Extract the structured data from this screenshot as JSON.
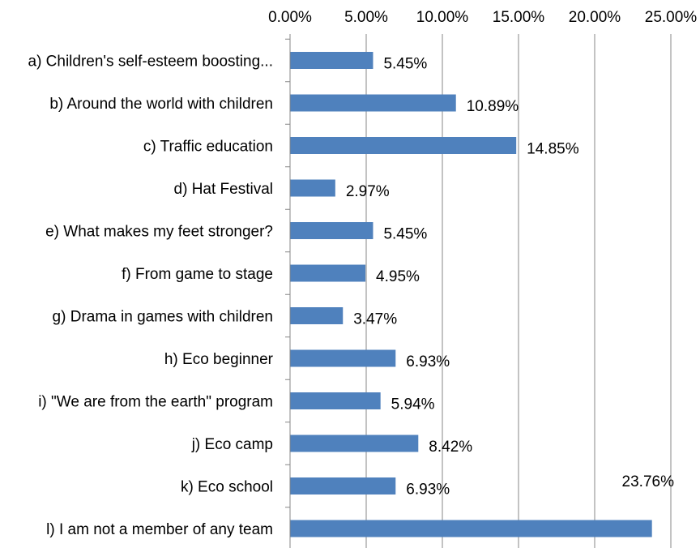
{
  "chart_data": {
    "type": "bar",
    "orientation": "horizontal",
    "categories": [
      "a) Children's self-esteem boosting...",
      "b) Around the world with children",
      "c) Traffic education",
      "d) Hat Festival",
      "e) What makes my feet stronger?",
      "f) From game to stage",
      "g) Drama in games with children",
      "h) Eco beginner",
      "i) \"We are from the earth\" program",
      "j) Eco camp",
      "k) Eco school",
      "l) I am not a member of any team"
    ],
    "values": [
      5.45,
      10.89,
      14.85,
      2.97,
      5.45,
      4.95,
      3.47,
      6.93,
      5.94,
      8.42,
      6.93,
      23.76
    ],
    "data_labels": [
      "5.45%",
      "10.89%",
      "14.85%",
      "2.97%",
      "5.45%",
      "4.95%",
      "3.47%",
      "6.93%",
      "5.94%",
      "8.42%",
      "6.93%",
      "23.76%"
    ],
    "x_ticks": [
      0,
      5,
      10,
      15,
      20,
      25
    ],
    "x_tick_labels": [
      "0.00%",
      "5.00%",
      "10.00%",
      "15.00%",
      "20.00%",
      "25.00%"
    ],
    "xlim": [
      0,
      25
    ],
    "x_axis_position": "top",
    "grid": "vertical",
    "legend": "none",
    "bar_color": "#4f81bd",
    "grid_color": "#878787"
  }
}
